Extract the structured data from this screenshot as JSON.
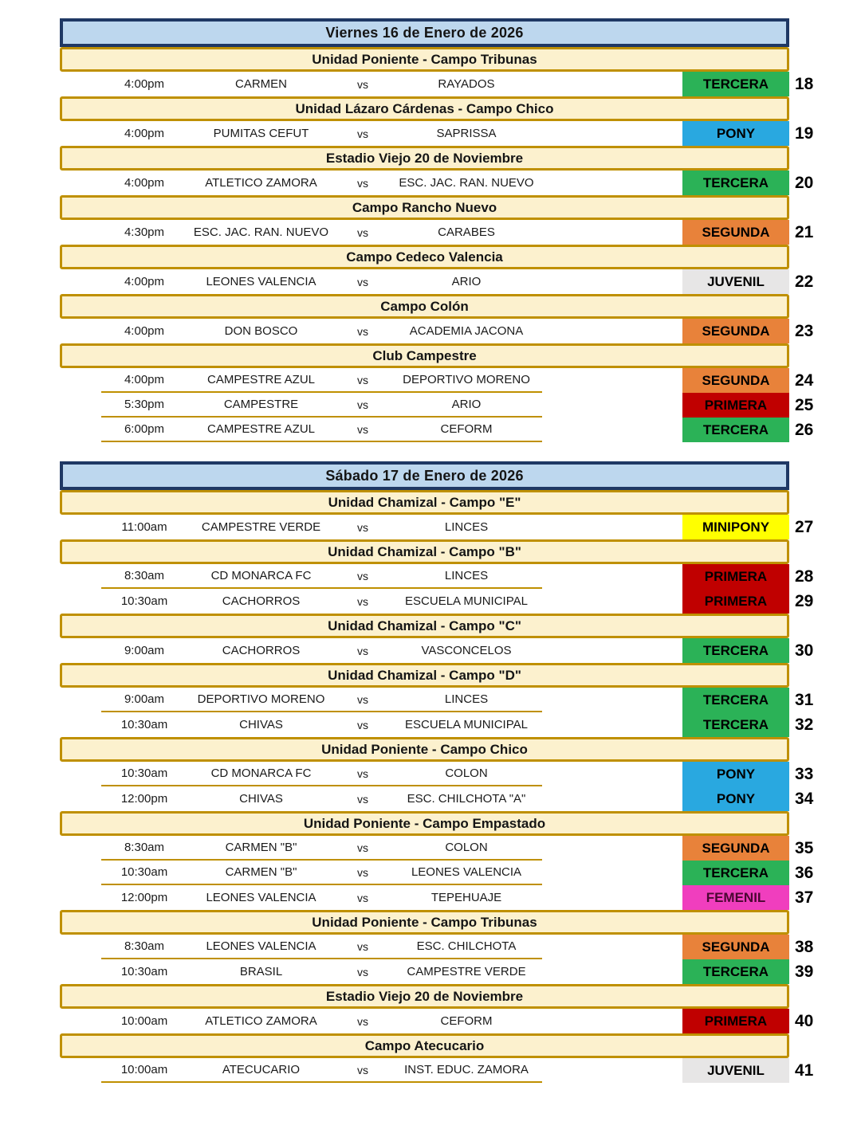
{
  "vs_label": "vs",
  "categories": {
    "TERCERA": {
      "bg": "#2BB257",
      "text": "#000000"
    },
    "PONY": {
      "bg": "#29A8E0",
      "text": "#000000"
    },
    "SEGUNDA": {
      "bg": "#E8823A",
      "text": "#000000"
    },
    "JUVENIL": {
      "bg": "#E7E6E6",
      "text": "#000000"
    },
    "PRIMERA": {
      "bg": "#C00000",
      "text": "#000000"
    },
    "MINIPONY": {
      "bg": "#FFFF00",
      "text": "#000000"
    },
    "FEMENIL": {
      "bg": "#F03EBE",
      "text": "#4A0832"
    }
  },
  "theme": {
    "date_bar_bg": "#BDD7EE",
    "date_bar_border": "#1F3864",
    "venue_bar_bg": "#FCF1CE",
    "venue_bar_border": "#BF9000",
    "row_separator": "#BF9000"
  },
  "sections": [
    {
      "date": "Viernes 16 de Enero de 2026",
      "venues": [
        {
          "name": "Unidad Poniente - Campo Tribunas",
          "matches": [
            {
              "time": "4:00pm",
              "home": "CARMEN",
              "away": "RAYADOS",
              "category": "TERCERA",
              "number": "18"
            }
          ]
        },
        {
          "name": "Unidad Lázaro Cárdenas - Campo Chico",
          "matches": [
            {
              "time": "4:00pm",
              "home": "PUMITAS CEFUT",
              "away": "SAPRISSA",
              "category": "PONY",
              "number": "19"
            }
          ]
        },
        {
          "name": "Estadio Viejo 20 de Noviembre",
          "matches": [
            {
              "time": "4:00pm",
              "home": "ATLETICO ZAMORA",
              "away": "ESC. JAC. RAN. NUEVO",
              "category": "TERCERA",
              "number": "20"
            }
          ]
        },
        {
          "name": "Campo Rancho Nuevo",
          "matches": [
            {
              "time": "4:30pm",
              "home": "ESC. JAC. RAN. NUEVO",
              "away": "CARABES",
              "category": "SEGUNDA",
              "number": "21"
            }
          ]
        },
        {
          "name": "Campo Cedeco Valencia",
          "matches": [
            {
              "time": "4:00pm",
              "home": "LEONES VALENCIA",
              "away": "ARIO",
              "category": "JUVENIL",
              "number": "22"
            }
          ]
        },
        {
          "name": "Campo Colón",
          "matches": [
            {
              "time": "4:00pm",
              "home": "DON BOSCO",
              "away": "ACADEMIA JACONA",
              "category": "SEGUNDA",
              "number": "23"
            }
          ]
        },
        {
          "name": "Club Campestre",
          "matches": [
            {
              "time": "4:00pm",
              "home": "CAMPESTRE AZUL",
              "away": "DEPORTIVO MORENO",
              "category": "SEGUNDA",
              "number": "24"
            },
            {
              "time": "5:30pm",
              "home": "CAMPESTRE",
              "away": "ARIO",
              "category": "PRIMERA",
              "number": "25"
            },
            {
              "time": "6:00pm",
              "home": "CAMPESTRE AZUL",
              "away": "CEFORM",
              "category": "TERCERA",
              "number": "26"
            }
          ]
        }
      ]
    },
    {
      "date": "Sábado 17 de Enero de 2026",
      "venues": [
        {
          "name": "Unidad Chamizal - Campo \"E\"",
          "matches": [
            {
              "time": "11:00am",
              "home": "CAMPESTRE VERDE",
              "away": "LINCES",
              "category": "MINIPONY",
              "number": "27"
            }
          ]
        },
        {
          "name": "Unidad Chamizal - Campo \"B\"",
          "matches": [
            {
              "time": "8:30am",
              "home": "CD MONARCA FC",
              "away": "LINCES",
              "category": "PRIMERA",
              "number": "28"
            },
            {
              "time": "10:30am",
              "home": "CACHORROS",
              "away": "ESCUELA MUNICIPAL",
              "category": "PRIMERA",
              "number": "29"
            }
          ]
        },
        {
          "name": "Unidad Chamizal - Campo \"C\"",
          "matches": [
            {
              "time": "9:00am",
              "home": "CACHORROS",
              "away": "VASCONCELOS",
              "category": "TERCERA",
              "number": "30"
            }
          ]
        },
        {
          "name": "Unidad Chamizal - Campo \"D\"",
          "matches": [
            {
              "time": "9:00am",
              "home": "DEPORTIVO MORENO",
              "away": "LINCES",
              "category": "TERCERA",
              "number": "31"
            },
            {
              "time": "10:30am",
              "home": "CHIVAS",
              "away": "ESCUELA MUNICIPAL",
              "category": "TERCERA",
              "number": "32"
            }
          ]
        },
        {
          "name": "Unidad Poniente - Campo Chico",
          "matches": [
            {
              "time": "10:30am",
              "home": "CD MONARCA FC",
              "away": "COLON",
              "category": "PONY",
              "number": "33"
            },
            {
              "time": "12:00pm",
              "home": "CHIVAS",
              "away": "ESC. CHILCHOTA \"A\"",
              "category": "PONY",
              "number": "34"
            }
          ]
        },
        {
          "name": "Unidad Poniente - Campo Empastado",
          "matches": [
            {
              "time": "8:30am",
              "home": "CARMEN \"B\"",
              "away": "COLON",
              "category": "SEGUNDA",
              "number": "35"
            },
            {
              "time": "10:30am",
              "home": "CARMEN \"B\"",
              "away": "LEONES VALENCIA",
              "category": "TERCERA",
              "number": "36"
            },
            {
              "time": "12:00pm",
              "home": "LEONES VALENCIA",
              "away": "TEPEHUAJE",
              "category": "FEMENIL",
              "number": "37"
            }
          ]
        },
        {
          "name": "Unidad Poniente - Campo Tribunas",
          "matches": [
            {
              "time": "8:30am",
              "home": "LEONES VALENCIA",
              "away": "ESC. CHILCHOTA",
              "category": "SEGUNDA",
              "number": "38"
            },
            {
              "time": "10:30am",
              "home": "BRASIL",
              "away": "CAMPESTRE VERDE",
              "category": "TERCERA",
              "number": "39"
            }
          ]
        },
        {
          "name": "Estadio Viejo 20 de Noviembre",
          "matches": [
            {
              "time": "10:00am",
              "home": "ATLETICO ZAMORA",
              "away": "CEFORM",
              "category": "PRIMERA",
              "number": "40"
            }
          ]
        },
        {
          "name": "Campo Atecucario",
          "matches": [
            {
              "time": "10:00am",
              "home": "ATECUCARIO",
              "away": "INST. EDUC. ZAMORA",
              "category": "JUVENIL",
              "number": "41"
            }
          ]
        }
      ]
    }
  ]
}
